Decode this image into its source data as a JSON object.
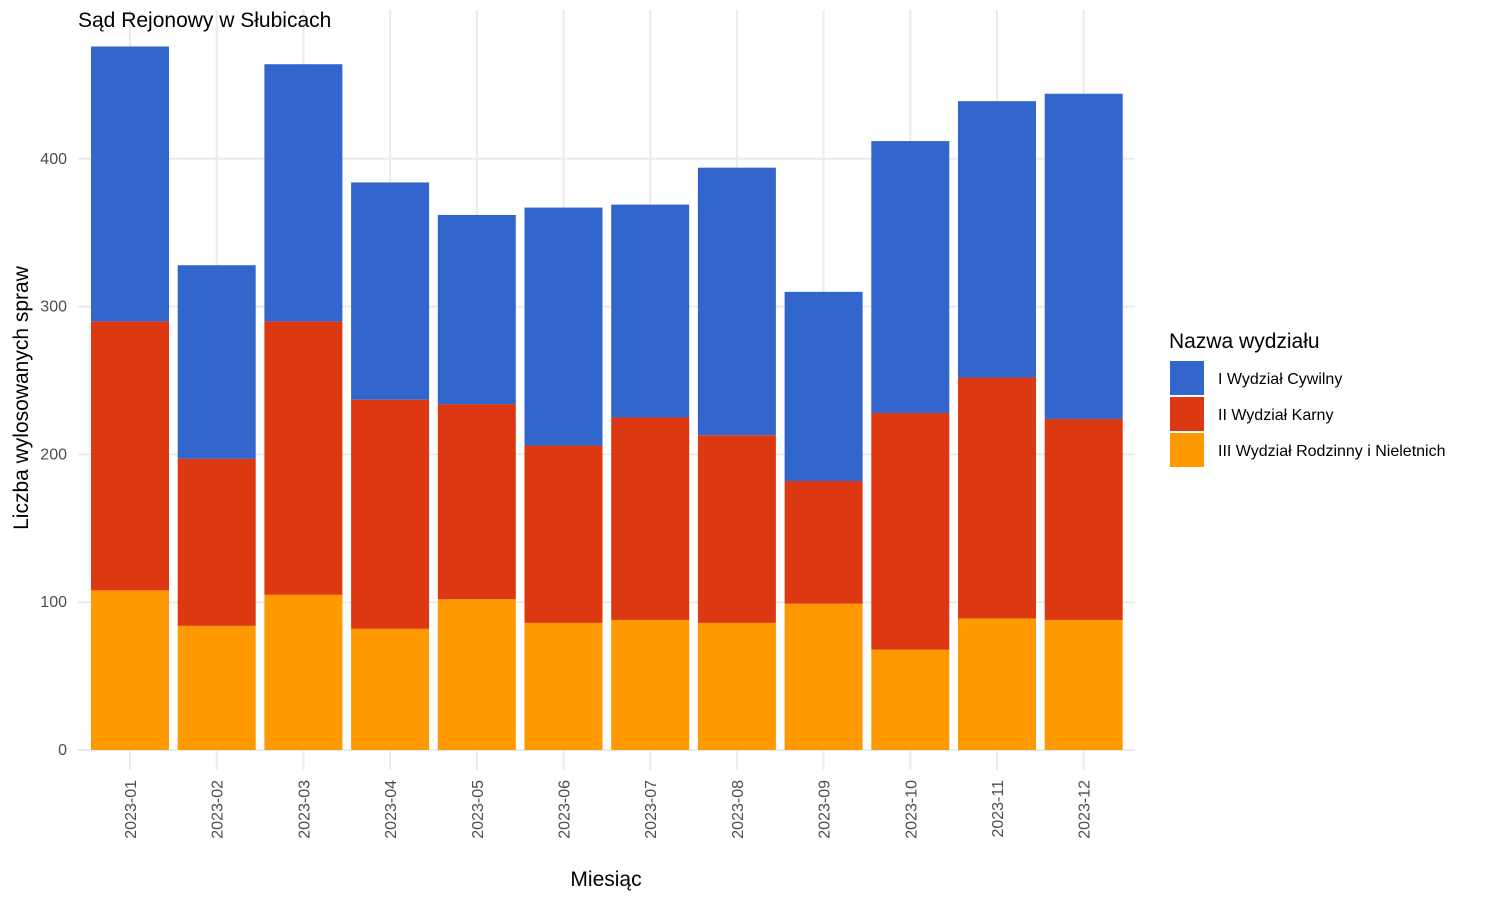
{
  "chart_data": {
    "type": "bar",
    "stacked": true,
    "title": "Sąd Rejonowy w Słubicach",
    "xlabel": "Miesiąc",
    "ylabel": "Liczba wylosowanych spraw",
    "ylim": [
      0,
      480
    ],
    "yticks": [
      0,
      100,
      200,
      300,
      400
    ],
    "categories": [
      "2023-01",
      "2023-02",
      "2023-03",
      "2023-04",
      "2023-05",
      "2023-06",
      "2023-07",
      "2023-08",
      "2023-09",
      "2023-10",
      "2023-11",
      "2023-12"
    ],
    "legend_title": "Nazwa wydziału",
    "legend_position": "right",
    "grid": true,
    "series": [
      {
        "name": "III Wydział Rodzinny i Nieletnich",
        "color": "#ff9900",
        "values": [
          108,
          84,
          105,
          82,
          102,
          86,
          88,
          86,
          99,
          68,
          89,
          88
        ]
      },
      {
        "name": "II Wydział Karny",
        "color": "#dc3912",
        "values": [
          182,
          113,
          185,
          155,
          132,
          120,
          137,
          127,
          83,
          160,
          163,
          136
        ]
      },
      {
        "name": "I Wydział Cywilny",
        "color": "#3366cc",
        "values": [
          186,
          131,
          174,
          147,
          128,
          161,
          144,
          181,
          128,
          184,
          187,
          220
        ]
      }
    ],
    "legend_order": [
      "I Wydział Cywilny",
      "II Wydział Karny",
      "III Wydział Rodzinny i Nieletnich"
    ]
  }
}
